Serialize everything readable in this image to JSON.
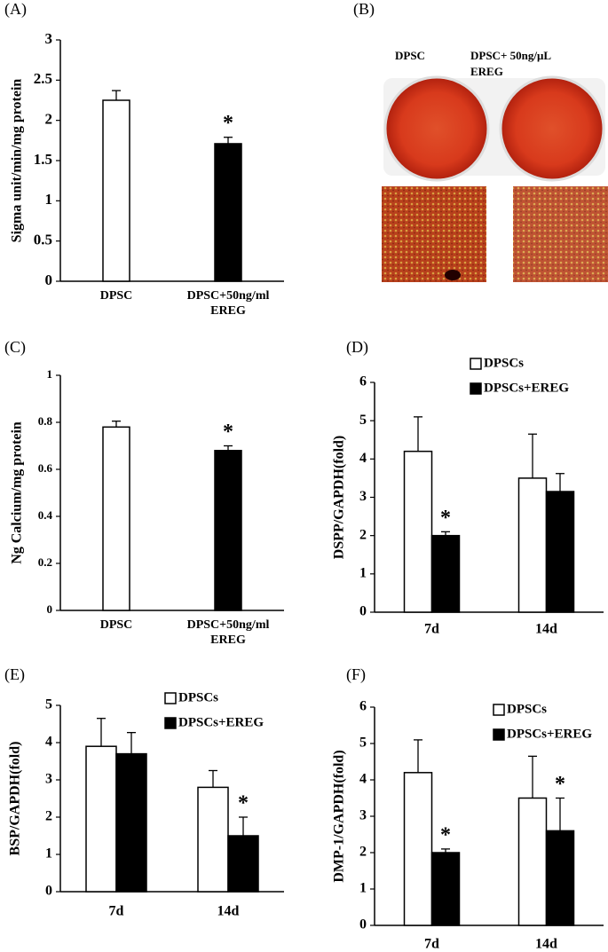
{
  "chart_data": [
    {
      "type": "bar",
      "panel": "(A)",
      "y_label": "Sigma unit/min/mg protein",
      "categories": [
        "DPSC",
        [
          "DPSC+50ng/ml",
          "EREG"
        ]
      ],
      "values": [
        2.25,
        1.71
      ],
      "errors": [
        0.12,
        0.08
      ],
      "colors": [
        "#ffffff",
        "#000000"
      ],
      "ylim": [
        0,
        3
      ],
      "yticks": [
        0,
        0.5,
        1,
        1.5,
        2,
        2.5,
        3
      ],
      "annotations": [
        {
          "text": "*",
          "category": [
            "DPSC+50ng/ml",
            "EREG"
          ]
        }
      ]
    },
    {
      "type": "image",
      "panel": "(B)",
      "labels": [
        "DPSC",
        "DPSC+ 50ng/μL",
        "EREG"
      ]
    },
    {
      "type": "bar",
      "panel": "(C)",
      "y_label": "Ng Calcium/mg protein",
      "categories": [
        "DPSC",
        [
          "DPSC+50ng/ml",
          "EREG"
        ]
      ],
      "values": [
        0.78,
        0.68
      ],
      "errors": [
        0.025,
        0.02
      ],
      "colors": [
        "#ffffff",
        "#000000"
      ],
      "ylim": [
        0,
        1
      ],
      "yticks": [
        0,
        0.2,
        0.4,
        0.6,
        0.8,
        1
      ],
      "annotations": [
        {
          "text": "*",
          "category": [
            "DPSC+50ng/ml",
            "EREG"
          ]
        }
      ]
    },
    {
      "type": "bar",
      "panel": "(D)",
      "y_label": "DSPP/GAPDH(fold)",
      "categories": [
        "7d",
        "14d"
      ],
      "series": [
        {
          "name": "DPSCs",
          "color": "#ffffff",
          "values": [
            4.2,
            3.5
          ],
          "errors": [
            0.9,
            1.15
          ]
        },
        {
          "name": "DPSCs+EREG",
          "color": "#000000",
          "values": [
            2.0,
            3.15
          ],
          "errors": [
            0.1,
            0.47
          ]
        }
      ],
      "ylim": [
        0,
        6
      ],
      "yticks": [
        0,
        1,
        2,
        3,
        4,
        5,
        6
      ],
      "annotations": [
        {
          "text": "*",
          "category": "7d",
          "series": "DPSCs+EREG"
        }
      ]
    },
    {
      "type": "bar",
      "panel": "(E)",
      "y_label": "BSP/GAPDH(fold)",
      "categories": [
        "7d",
        "14d"
      ],
      "series": [
        {
          "name": "DPSCs",
          "color": "#ffffff",
          "values": [
            3.9,
            2.8
          ],
          "errors": [
            0.75,
            0.45
          ]
        },
        {
          "name": "DPSCs+EREG",
          "color": "#000000",
          "values": [
            3.7,
            1.5
          ],
          "errors": [
            0.57,
            0.5
          ]
        }
      ],
      "ylim": [
        0,
        5
      ],
      "yticks": [
        0,
        1,
        2,
        3,
        4,
        5
      ],
      "annotations": [
        {
          "text": "*",
          "category": "14d",
          "series": "DPSCs+EREG"
        }
      ]
    },
    {
      "type": "bar",
      "panel": "(F)",
      "y_label": "DMP-1/GAPDH(fold)",
      "categories": [
        "7d",
        "14d"
      ],
      "series": [
        {
          "name": "DPSCs",
          "color": "#ffffff",
          "values": [
            4.2,
            3.5
          ],
          "errors": [
            0.9,
            1.15
          ]
        },
        {
          "name": "DPSCs+EREG",
          "color": "#000000",
          "values": [
            2.0,
            2.6
          ],
          "errors": [
            0.1,
            0.9
          ]
        }
      ],
      "ylim": [
        0,
        6
      ],
      "yticks": [
        0,
        1,
        2,
        3,
        4,
        5,
        6
      ],
      "annotations": [
        {
          "text": "*",
          "category": "7d",
          "series": "DPSCs+EREG"
        },
        {
          "text": "*",
          "category": "14d",
          "series": "DPSCs+EREG"
        }
      ]
    }
  ]
}
